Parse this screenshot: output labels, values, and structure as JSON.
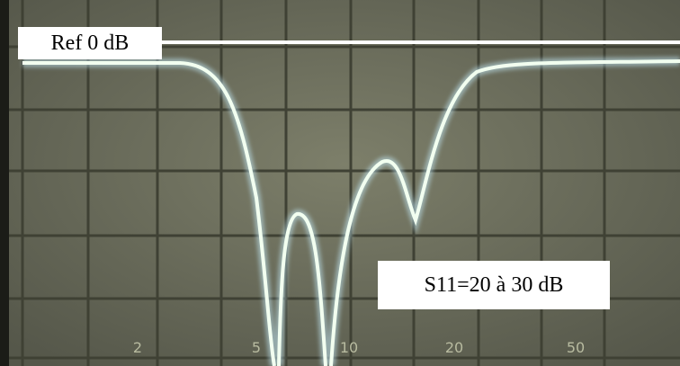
{
  "annotations": {
    "reference": "Ref 0 dB",
    "s11": "S11=20 à 30 dB"
  },
  "screen": {
    "x_labels": [
      "2",
      "5",
      "10",
      "20",
      "50"
    ]
  }
}
